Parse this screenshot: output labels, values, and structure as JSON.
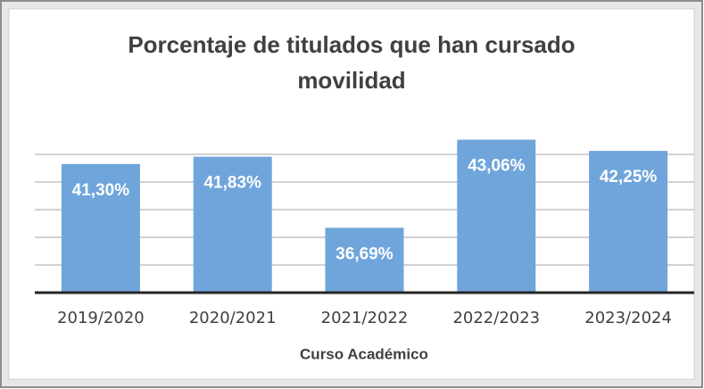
{
  "chart_data": {
    "type": "bar",
    "title": "Porcentaje de titulados que han cursado movilidad",
    "x_label": "Curso Académico",
    "categories": [
      "2019/2020",
      "2020/2021",
      "2021/2022",
      "2022/2023",
      "2023/2024"
    ],
    "values": [
      41.3,
      41.83,
      36.69,
      43.06,
      42.25
    ],
    "value_labels": [
      "41,30%",
      "41,83%",
      "36,69%",
      "43,06%",
      "42,25%"
    ],
    "color": "#6fa5db",
    "ylim": [
      32,
      44
    ],
    "yticks": [
      32,
      34,
      36,
      38,
      40,
      42
    ],
    "grid": true
  }
}
